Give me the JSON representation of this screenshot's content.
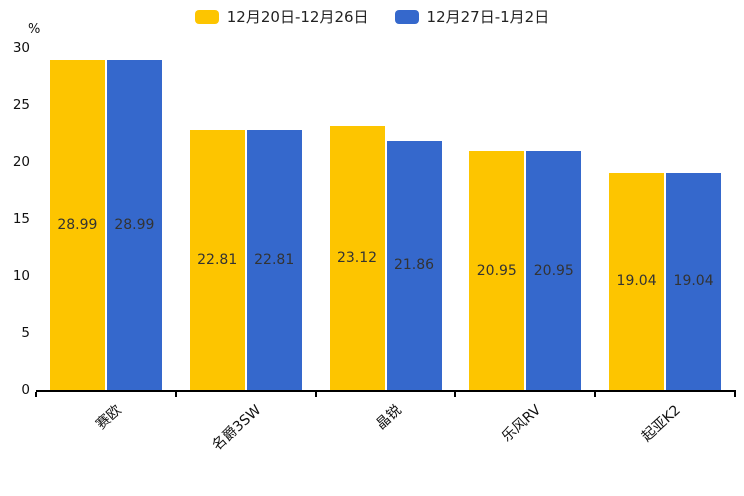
{
  "chart_data": {
    "type": "bar",
    "title": "",
    "ylabel": "%",
    "xlabel": "",
    "ylim": [
      0,
      30
    ],
    "yticks": [
      0,
      5,
      10,
      15,
      20,
      25,
      30
    ],
    "grid": false,
    "legend_position": "top",
    "value_labels_shown": true,
    "categories": [
      "赛欧",
      "名爵3SW",
      "晶锐",
      "乐风RV",
      "起亚K2"
    ],
    "series": [
      {
        "name": "12月20日-12月26日",
        "color": "#FDC500",
        "values": [
          28.99,
          22.81,
          23.12,
          20.95,
          19.04
        ]
      },
      {
        "name": "12月27日-1月2日",
        "color": "#3568CC",
        "values": [
          28.99,
          22.81,
          21.86,
          20.95,
          19.04
        ]
      }
    ]
  },
  "colors": {
    "axis": "#000000",
    "value_label": "#333333",
    "tick_label": "#111111",
    "background": "#ffffff"
  }
}
